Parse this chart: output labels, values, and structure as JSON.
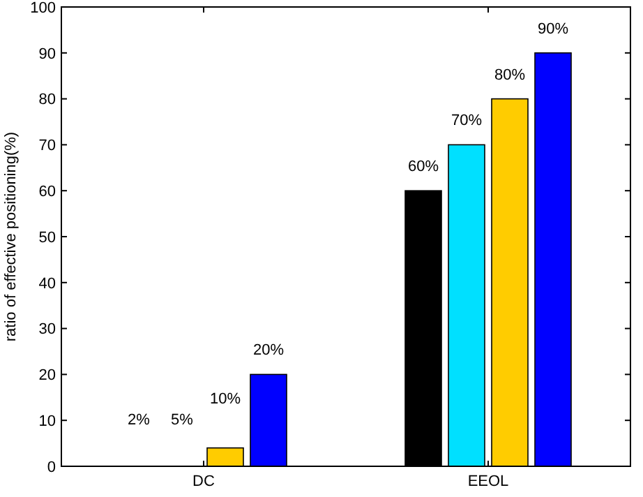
{
  "chart_data": {
    "type": "bar",
    "ylabel": "ratio of effective positioning(%)",
    "categories": [
      "DC",
      "EEOL"
    ],
    "series": [
      {
        "color": "#000000",
        "values": [
          0,
          60
        ],
        "value_labels": [
          null,
          "60%"
        ]
      },
      {
        "color": "#00e0ff",
        "values": [
          0,
          70
        ],
        "value_labels": [
          null,
          "70%"
        ]
      },
      {
        "color": "#ffcc00",
        "values": [
          4,
          80
        ],
        "value_labels": [
          null,
          "80%"
        ]
      },
      {
        "color": "#0000ff",
        "values": [
          20,
          90
        ],
        "value_labels": [
          "20%",
          "90%"
        ]
      }
    ],
    "annotations": [
      "2%",
      "5%",
      "10%"
    ],
    "ylim": [
      0,
      100
    ],
    "yticks": [
      0,
      10,
      20,
      30,
      40,
      50,
      60,
      70,
      80,
      90,
      100
    ],
    "grid": false
  }
}
